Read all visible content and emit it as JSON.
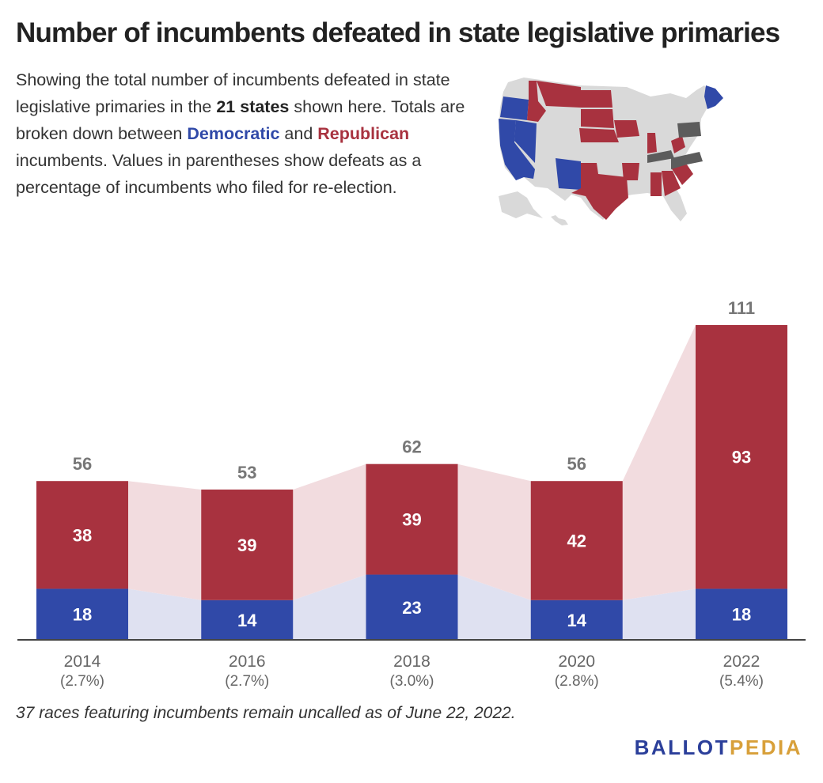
{
  "title": "Number of incumbents defeated in state legislative primaries",
  "description": {
    "part1": "Showing the total number of incumbents defeated in state legislative primaries in the ",
    "states": "21 states",
    "part2": " shown here. Totals are broken down between ",
    "democratic": "Democratic",
    "part3": " and ",
    "republican": "Republican",
    "part4": " incumbents. Values in parentheses show defeats as a percentage of incumbents who filed for re-election."
  },
  "colors": {
    "democratic": "#3049a8",
    "republican": "#a8323f",
    "dem_connector": "#dfe1f1",
    "rep_connector": "#f2dcdf",
    "map_other": "#d9d9d9",
    "map_mixed": "#5c5c5c",
    "axis": "#444444"
  },
  "chart_data": {
    "type": "bar",
    "stacked": true,
    "categories": [
      "2014",
      "2016",
      "2018",
      "2020",
      "2022"
    ],
    "percentages": [
      "(2.7%)",
      "(2.7%)",
      "(3.0%)",
      "(2.8%)",
      "(5.4%)"
    ],
    "series": [
      {
        "name": "Democratic",
        "values": [
          18,
          14,
          23,
          14,
          18
        ]
      },
      {
        "name": "Republican",
        "values": [
          38,
          39,
          39,
          42,
          93
        ]
      }
    ],
    "totals": [
      56,
      53,
      62,
      56,
      111
    ],
    "ylim": [
      0,
      111
    ]
  },
  "note": "37 races featuring incumbents remain uncalled as of June 22, 2022.",
  "logo": {
    "part1": "BALLOT",
    "part2": "PEDIA"
  }
}
